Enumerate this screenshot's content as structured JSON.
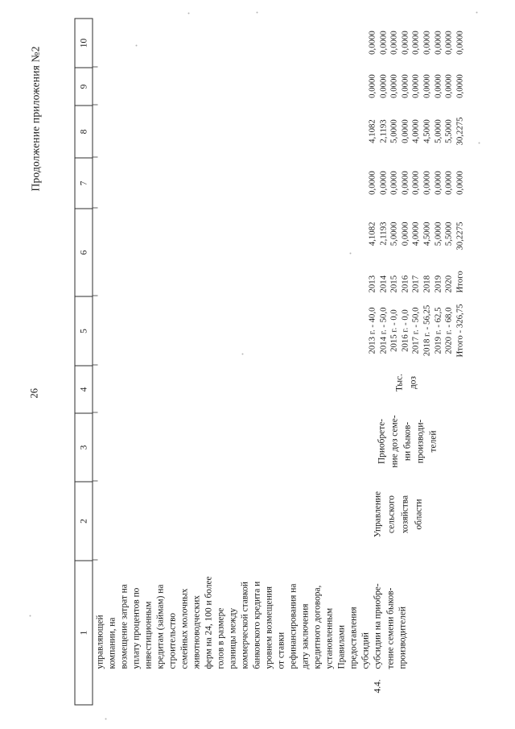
{
  "page": {
    "continuation_label": "Продолжение приложения №2",
    "page_number": "26"
  },
  "table": {
    "column_headers": [
      "1",
      "2",
      "3",
      "4",
      "5",
      "6",
      "7",
      "8",
      "9",
      "10"
    ],
    "rows": [
      {
        "note": "continuation of previous page, column 1 text only",
        "col1_lines": [
          "управляющей",
          "компании, на",
          "возмещение затрат на",
          "уплату процентов по",
          "инвестиционным",
          "кредитам (займам) на",
          "строительство",
          "семейных молочных",
          "животноводческих",
          "ферм на 24, 100 и более",
          "голов в размере",
          "разницы между",
          "коммерческой ставкой",
          "банковского кредита и",
          "уровнем возмещения",
          "от ставки",
          "рефинансирования на",
          "дату заключения",
          "кредитного договора,",
          "установленным",
          "Правилами",
          "предоставления",
          "субсидий"
        ]
      },
      {
        "number": "4.4.",
        "col1_lines": [
          "субсидии на приобре-",
          "тение семени быков-",
          "производителей"
        ],
        "col2_lines": [
          "Управление",
          "сельского",
          "хозяйства",
          "области"
        ],
        "col3_lines": [
          "Приобрете-",
          "ние доз семе-",
          "ни быков-",
          "производи-",
          "телей"
        ],
        "col4_lines": [
          "Тыс.",
          "доз"
        ],
        "col5_lines": [
          "2013 г. - 40,0",
          "2014 г. - 50,0",
          "2015 г. - 0,0",
          "2016 г. - 0,0",
          "2017 г. - 50,0",
          "2018 г. - 56,25",
          "2019 г. - 62,5",
          "2020 г. - 68,0",
          "Итого - 326,75"
        ],
        "col6_pairs": [
          {
            "year": "2013",
            "value": "4,1082"
          },
          {
            "year": "2014",
            "value": "2,1193"
          },
          {
            "year": "2015",
            "value": "5,0000"
          },
          {
            "year": "2016",
            "value": "0,0000"
          },
          {
            "year": "2017",
            "value": "4,0000"
          },
          {
            "year": "2018",
            "value": "4,5000"
          },
          {
            "year": "2019",
            "value": "5,0000"
          },
          {
            "year": "2020",
            "value": "5,5000"
          },
          {
            "year": "Итого",
            "value": "30,2275"
          }
        ],
        "col7_values": [
          "0,0000",
          "0,0000",
          "0,0000",
          "0,0000",
          "0,0000",
          "0,0000",
          "0,0000",
          "0,0000",
          "0,0000"
        ],
        "col8_values": [
          "4,1082",
          "2,1193",
          "5,0000",
          "0,0000",
          "4,0000",
          "4,5000",
          "5,0000",
          "5,5000",
          "30,2275"
        ],
        "col9_values": [
          "0,0000",
          "0,0000",
          "0,0000",
          "0,0000",
          "0,0000",
          "0,0000",
          "0,0000",
          "0,0000",
          "0,0000"
        ],
        "col10_values": [
          "0,0000",
          "0,0000",
          "0,0000",
          "0,0000",
          "0,0000",
          "0,0000",
          "0,0000",
          "0,0000",
          "0,0000"
        ]
      }
    ]
  }
}
